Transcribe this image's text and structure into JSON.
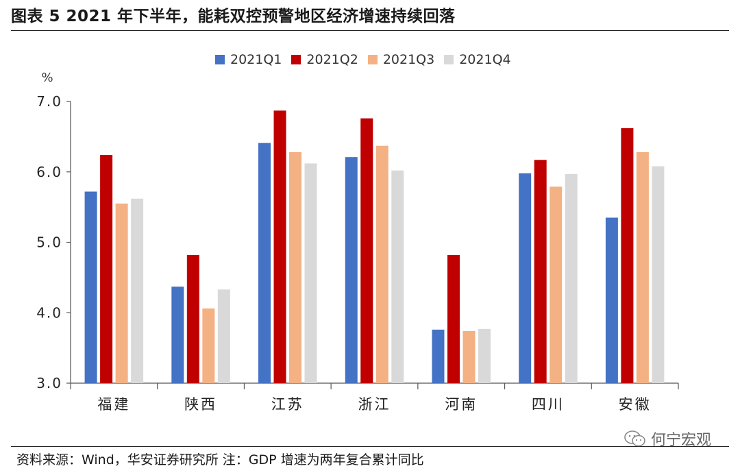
{
  "header": {
    "title": "图表 5 2021 年下半年，能耗双控预警地区经济增速持续回落"
  },
  "footer": {
    "source": "资料来源：Wind，华安证券研究所 注：GDP 增速为两年复合累计同比",
    "watermark": "何宁宏观",
    "watermark_icon": "wechat-icon"
  },
  "colors": {
    "2021Q1": "#4472C4",
    "2021Q2": "#C00000",
    "2021Q3": "#F4B183",
    "2021Q4": "#D9D9D9"
  },
  "chart_data": {
    "type": "bar",
    "title": "",
    "xlabel": "",
    "ylabel": "%",
    "ylim": [
      3.0,
      7.0
    ],
    "yticks": [
      "3.0",
      "4.0",
      "5.0",
      "6.0",
      "7.0"
    ],
    "grid": false,
    "legend_position": "top-center",
    "categories": [
      "福建",
      "陕西",
      "江苏",
      "浙江",
      "河南",
      "四川",
      "安徽"
    ],
    "series": [
      {
        "name": "2021Q1",
        "values": [
          5.72,
          4.37,
          6.41,
          6.21,
          3.76,
          5.98,
          5.35
        ]
      },
      {
        "name": "2021Q2",
        "values": [
          6.24,
          4.82,
          6.87,
          6.76,
          4.82,
          6.17,
          6.62
        ]
      },
      {
        "name": "2021Q3",
        "values": [
          5.55,
          4.06,
          6.28,
          6.37,
          3.74,
          5.79,
          6.28
        ]
      },
      {
        "name": "2021Q4",
        "values": [
          5.62,
          4.33,
          6.12,
          6.02,
          3.77,
          5.97,
          6.08
        ]
      }
    ]
  }
}
